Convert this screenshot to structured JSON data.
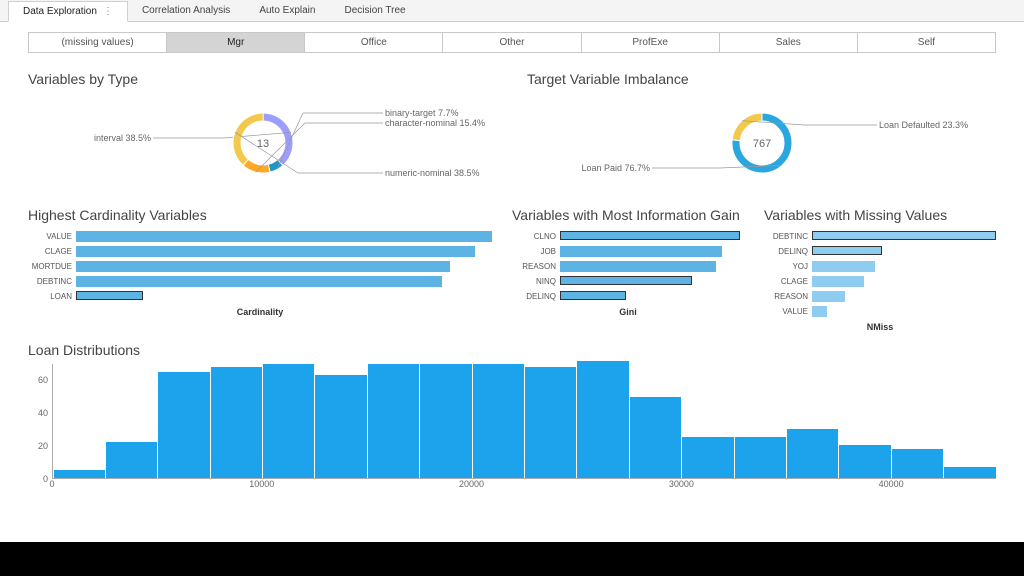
{
  "tabs": {
    "items": [
      {
        "label": "Data Exploration",
        "active": true
      },
      {
        "label": "Correlation Analysis",
        "active": false
      },
      {
        "label": "Auto Explain",
        "active": false
      },
      {
        "label": "Decision Tree",
        "active": false
      }
    ]
  },
  "filters": {
    "items": [
      {
        "label": "(missing values)",
        "selected": false
      },
      {
        "label": "Mgr",
        "selected": true
      },
      {
        "label": "Office",
        "selected": false
      },
      {
        "label": "Other",
        "selected": false
      },
      {
        "label": "ProfExe",
        "selected": false
      },
      {
        "label": "Sales",
        "selected": false
      },
      {
        "label": "Self",
        "selected": false
      }
    ]
  },
  "var_by_type": {
    "title": "Variables by Type",
    "center_value": "13",
    "slices": [
      {
        "label": "interval 38.5%",
        "pct": 38.5,
        "color": "#9c9eff"
      },
      {
        "label": "binary-target 7.7%",
        "pct": 7.7,
        "color": "#2196c4"
      },
      {
        "label": "character-nominal 15.4%",
        "pct": 15.4,
        "color": "#ffa726"
      },
      {
        "label": "numeric-nominal 38.5%",
        "pct": 38.5,
        "color": "#f2c94c"
      }
    ]
  },
  "target_imbalance": {
    "title": "Target Variable Imbalance",
    "center_value": "767",
    "slices": [
      {
        "label": "Loan Paid 76.7%",
        "pct": 76.7,
        "color": "#2ba7df"
      },
      {
        "label": "Loan Defaulted 23.3%",
        "pct": 23.3,
        "color": "#f2c94c"
      }
    ]
  },
  "cardinality": {
    "title": "Highest Cardinality Variables",
    "xlabel": "Cardinality",
    "bar_color": "#5cb3e4",
    "highlight_border": "#333333",
    "bars": [
      {
        "label": "VALUE",
        "value": 100,
        "highlighted": false
      },
      {
        "label": "CLAGE",
        "value": 96,
        "highlighted": false
      },
      {
        "label": "MORTDUE",
        "value": 90,
        "highlighted": false
      },
      {
        "label": "DEBTINC",
        "value": 88,
        "highlighted": false
      },
      {
        "label": "LOAN",
        "value": 16,
        "highlighted": true
      }
    ]
  },
  "info_gain": {
    "title": "Variables with Most Information Gain",
    "xlabel": "Gini",
    "bar_color": "#5cb3e4",
    "bars": [
      {
        "label": "CLNO",
        "value": 98,
        "highlighted": true
      },
      {
        "label": "JOB",
        "value": 88,
        "highlighted": false
      },
      {
        "label": "REASON",
        "value": 85,
        "highlighted": false
      },
      {
        "label": "NINQ",
        "value": 72,
        "highlighted": true
      },
      {
        "label": "DELINQ",
        "value": 36,
        "highlighted": true
      }
    ]
  },
  "missing": {
    "title": "Variables with Missing Values",
    "xlabel": "NMiss",
    "bar_color": "#8fcdf0",
    "bars": [
      {
        "label": "DEBTINC",
        "value": 100,
        "highlighted": true
      },
      {
        "label": "DELINQ",
        "value": 38,
        "highlighted": true
      },
      {
        "label": "YOJ",
        "value": 34,
        "highlighted": false
      },
      {
        "label": "CLAGE",
        "value": 28,
        "highlighted": false
      },
      {
        "label": "REASON",
        "value": 18,
        "highlighted": false
      },
      {
        "label": "VALUE",
        "value": 8,
        "highlighted": false
      }
    ]
  },
  "histogram": {
    "title": "Loan Distributions",
    "bar_color": "#1ca3ec",
    "ylim": [
      0,
      70
    ],
    "yticks": [
      0,
      20,
      40,
      60
    ],
    "xlim": [
      0,
      45000
    ],
    "xticks": [
      0,
      10000,
      20000,
      30000,
      40000
    ],
    "values": [
      5,
      22,
      65,
      68,
      70,
      63,
      70,
      70,
      70,
      68,
      72,
      50,
      25,
      25,
      30,
      20,
      18,
      7
    ]
  },
  "colors": {
    "background": "#ffffff",
    "tab_bg": "#f4f4f4",
    "border": "#c8c8c8"
  }
}
